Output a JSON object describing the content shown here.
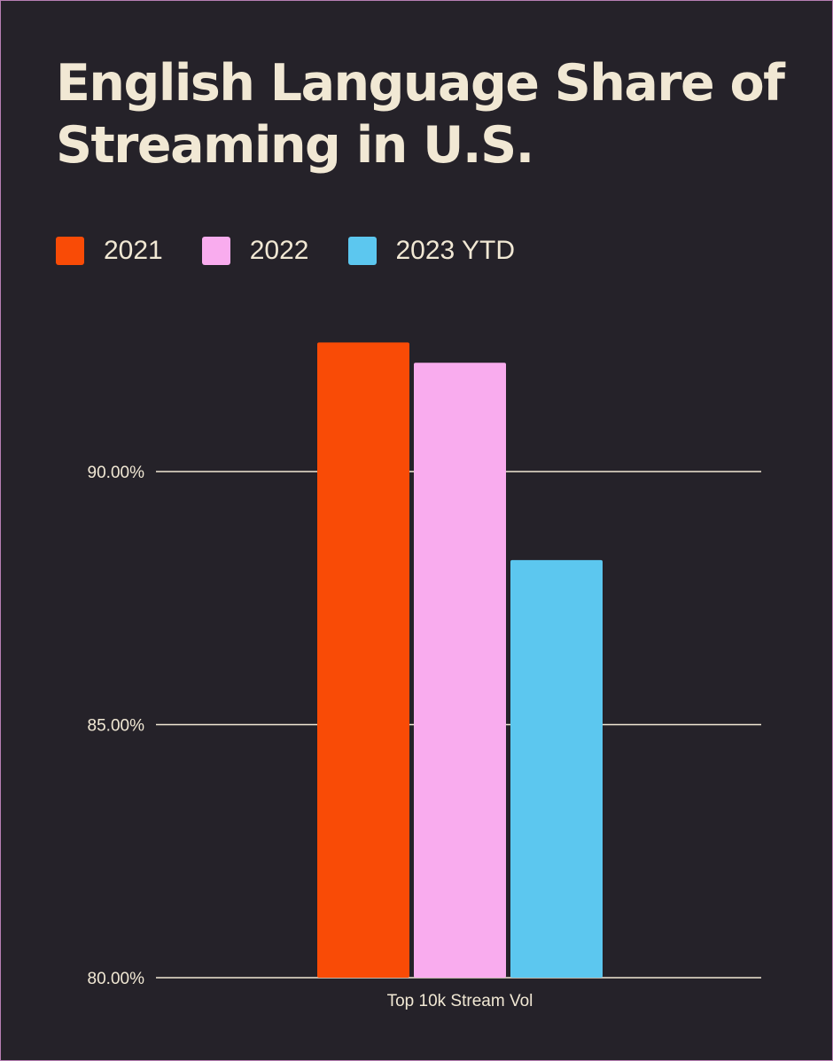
{
  "chart_data": {
    "type": "bar",
    "title": "English Language Share of Streaming in U.S.",
    "categories": [
      "Top 10k Stream Vol"
    ],
    "series": [
      {
        "name": "2021",
        "values": [
          92.55
        ],
        "color": "#f94b06"
      },
      {
        "name": "2022",
        "values": [
          92.15
        ],
        "color": "#f9acee"
      },
      {
        "name": "2023 YTD",
        "values": [
          88.25
        ],
        "color": "#5cc7ef"
      }
    ],
    "yticks": [
      "80.00%",
      "85.00%",
      "90.00%"
    ],
    "ylim": [
      80,
      95
    ],
    "xlabel": "",
    "ylabel": "",
    "grid": true,
    "legend_position": "top-left"
  },
  "colors": {
    "background": "#252229",
    "text": "#f1e8d4",
    "gridline": "#f1e8d4"
  }
}
